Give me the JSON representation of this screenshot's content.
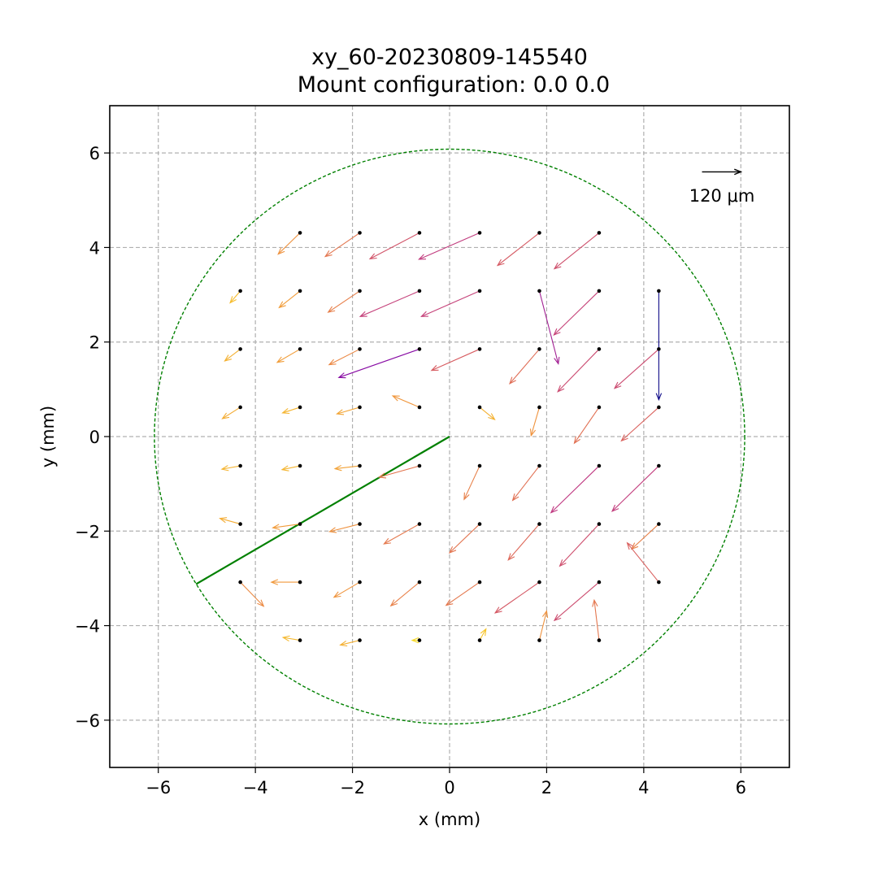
{
  "chart_data": {
    "type": "quiver",
    "title": "xy_60-20230809-145540",
    "subtitle": "Mount configuration: 0.0 0.0",
    "xlabel": "x (mm)",
    "ylabel": "y (mm)",
    "xlim": [
      -7,
      7
    ],
    "ylim": [
      -7,
      7
    ],
    "xticks": [
      -6,
      -4,
      -2,
      0,
      2,
      4,
      6
    ],
    "yticks": [
      -6,
      -4,
      -2,
      0,
      2,
      4,
      6
    ],
    "grid": true,
    "scale_key": {
      "label": "120 μm",
      "location": "top-right",
      "x_start": 5.2,
      "y": 5.6,
      "x_end": 6.0
    },
    "circle": {
      "center": [
        0,
        0
      ],
      "radius": 6.08,
      "color": "#008000",
      "style": "dashed"
    },
    "line": {
      "points": [
        [
          0,
          0
        ],
        [
          -5.22,
          -3.12
        ]
      ],
      "color": "#008000"
    },
    "arrows": [
      {
        "x": -3.08,
        "y": 4.31,
        "dx": -0.45,
        "dy": -0.45
      },
      {
        "x": -1.85,
        "y": 4.31,
        "dx": -0.71,
        "dy": -0.5
      },
      {
        "x": -0.62,
        "y": 4.31,
        "dx": -1.02,
        "dy": -0.55
      },
      {
        "x": 0.62,
        "y": 4.31,
        "dx": -1.25,
        "dy": -0.56
      },
      {
        "x": 1.85,
        "y": 4.31,
        "dx": -0.86,
        "dy": -0.69
      },
      {
        "x": 3.08,
        "y": 4.31,
        "dx": -0.92,
        "dy": -0.76
      },
      {
        "x": -4.31,
        "y": 3.08,
        "dx": -0.21,
        "dy": -0.25
      },
      {
        "x": -3.08,
        "y": 3.08,
        "dx": -0.43,
        "dy": -0.35
      },
      {
        "x": -1.85,
        "y": 3.08,
        "dx": -0.65,
        "dy": -0.45
      },
      {
        "x": -0.62,
        "y": 3.08,
        "dx": -1.22,
        "dy": -0.54
      },
      {
        "x": 0.62,
        "y": 3.08,
        "dx": -1.2,
        "dy": -0.54
      },
      {
        "x": 1.85,
        "y": 3.08,
        "dx": 0.39,
        "dy": -1.54
      },
      {
        "x": 3.08,
        "y": 3.08,
        "dx": -0.93,
        "dy": -0.93
      },
      {
        "x": 4.31,
        "y": 3.08,
        "dx": 0.0,
        "dy": -2.3
      },
      {
        "x": -4.31,
        "y": 1.85,
        "dx": -0.32,
        "dy": -0.25
      },
      {
        "x": -3.08,
        "y": 1.85,
        "dx": -0.47,
        "dy": -0.28
      },
      {
        "x": -1.85,
        "y": 1.85,
        "dx": -0.63,
        "dy": -0.33
      },
      {
        "x": -0.62,
        "y": 1.85,
        "dx": -1.66,
        "dy": -0.6
      },
      {
        "x": 0.62,
        "y": 1.85,
        "dx": -0.99,
        "dy": -0.45
      },
      {
        "x": 1.85,
        "y": 1.85,
        "dx": -0.61,
        "dy": -0.73
      },
      {
        "x": 3.08,
        "y": 1.85,
        "dx": -0.85,
        "dy": -0.9
      },
      {
        "x": 4.31,
        "y": 1.85,
        "dx": -0.91,
        "dy": -0.83
      },
      {
        "x": -4.31,
        "y": 0.62,
        "dx": -0.37,
        "dy": -0.24
      },
      {
        "x": -3.08,
        "y": 0.62,
        "dx": -0.36,
        "dy": -0.12
      },
      {
        "x": -1.85,
        "y": 0.62,
        "dx": -0.47,
        "dy": -0.14
      },
      {
        "x": -0.62,
        "y": 0.62,
        "dx": -0.55,
        "dy": 0.24
      },
      {
        "x": 0.62,
        "y": 0.62,
        "dx": 0.31,
        "dy": -0.26
      },
      {
        "x": 1.85,
        "y": 0.62,
        "dx": -0.17,
        "dy": -0.6
      },
      {
        "x": 3.08,
        "y": 0.62,
        "dx": -0.51,
        "dy": -0.76
      },
      {
        "x": 4.31,
        "y": 0.62,
        "dx": -0.77,
        "dy": -0.71
      },
      {
        "x": -4.31,
        "y": -0.62,
        "dx": -0.38,
        "dy": -0.07
      },
      {
        "x": -3.08,
        "y": -0.62,
        "dx": -0.37,
        "dy": -0.08
      },
      {
        "x": -1.85,
        "y": -0.62,
        "dx": -0.51,
        "dy": -0.06
      },
      {
        "x": -0.62,
        "y": -0.62,
        "dx": -0.83,
        "dy": -0.24
      },
      {
        "x": 0.62,
        "y": -0.62,
        "dx": -0.32,
        "dy": -0.71
      },
      {
        "x": 1.85,
        "y": -0.62,
        "dx": -0.55,
        "dy": -0.73
      },
      {
        "x": 3.08,
        "y": -0.62,
        "dx": -0.99,
        "dy": -0.99
      },
      {
        "x": 4.31,
        "y": -0.62,
        "dx": -0.96,
        "dy": -0.96
      },
      {
        "x": -4.31,
        "y": -1.85,
        "dx": -0.42,
        "dy": 0.12
      },
      {
        "x": -3.08,
        "y": -1.85,
        "dx": -0.56,
        "dy": -0.08
      },
      {
        "x": -1.85,
        "y": -1.85,
        "dx": -0.62,
        "dy": -0.16
      },
      {
        "x": -0.62,
        "y": -1.85,
        "dx": -0.73,
        "dy": -0.42
      },
      {
        "x": 0.62,
        "y": -1.85,
        "dx": -0.62,
        "dy": -0.61
      },
      {
        "x": 1.85,
        "y": -1.85,
        "dx": -0.64,
        "dy": -0.76
      },
      {
        "x": 3.08,
        "y": -1.85,
        "dx": -0.81,
        "dy": -0.89
      },
      {
        "x": 4.31,
        "y": -1.85,
        "dx": -0.56,
        "dy": -0.53
      },
      {
        "x": -4.31,
        "y": -3.08,
        "dx": 0.48,
        "dy": -0.51
      },
      {
        "x": -3.08,
        "y": -3.08,
        "dx": -0.59,
        "dy": 0.0
      },
      {
        "x": -1.85,
        "y": -3.08,
        "dx": -0.53,
        "dy": -0.32
      },
      {
        "x": -0.62,
        "y": -3.08,
        "dx": -0.59,
        "dy": -0.5
      },
      {
        "x": 0.62,
        "y": -3.08,
        "dx": -0.69,
        "dy": -0.49
      },
      {
        "x": 1.85,
        "y": -3.08,
        "dx": -0.91,
        "dy": -0.65
      },
      {
        "x": 3.08,
        "y": -3.08,
        "dx": -0.92,
        "dy": -0.81
      },
      {
        "x": 4.31,
        "y": -3.08,
        "dx": -0.65,
        "dy": 0.83
      },
      {
        "x": -3.08,
        "y": -4.31,
        "dx": -0.35,
        "dy": 0.06
      },
      {
        "x": -1.85,
        "y": -4.31,
        "dx": -0.4,
        "dy": -0.1
      },
      {
        "x": -0.62,
        "y": -4.31,
        "dx": -0.15,
        "dy": 0.0
      },
      {
        "x": 0.62,
        "y": -4.31,
        "dx": 0.13,
        "dy": 0.24
      },
      {
        "x": 1.85,
        "y": -4.31,
        "dx": 0.15,
        "dy": 0.62
      },
      {
        "x": 3.08,
        "y": -4.31,
        "dx": -0.1,
        "dy": 0.85
      }
    ]
  }
}
